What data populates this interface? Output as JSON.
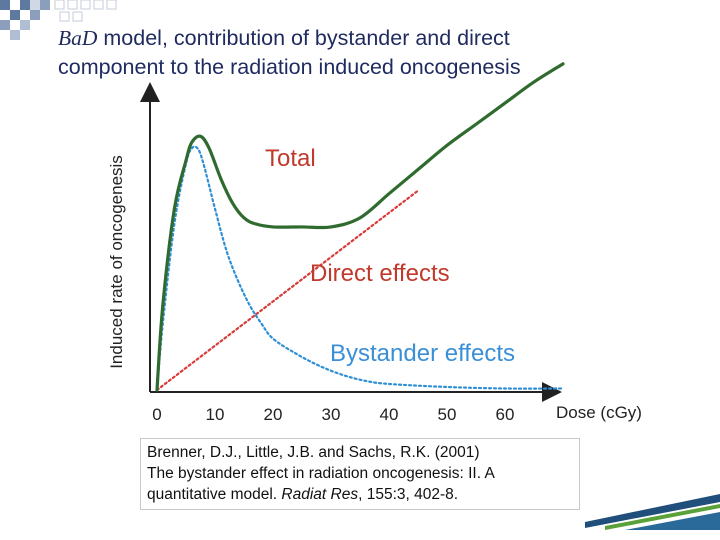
{
  "title": {
    "prefix": "BaD",
    "rest_line1": " model, contribution of bystander and direct",
    "line2": "component to the radiation induced oncogenesis"
  },
  "chart_data": {
    "type": "line",
    "xlabel": "Dose (cGy)",
    "ylabel": "Induced rate of oncogenesis",
    "xticks": [
      "0",
      "10",
      "20",
      "30",
      "40",
      "50",
      "60"
    ],
    "xlim": [
      0,
      70
    ],
    "ylim": [
      0,
      100
    ],
    "grid": false,
    "series": [
      {
        "name": "Total",
        "color": "#2f6b2f",
        "style": "solid",
        "x": [
          0,
          1,
          3,
          5,
          6,
          7.5,
          9,
          11,
          13,
          15,
          17,
          20,
          25,
          30,
          35,
          40,
          45,
          50,
          55,
          60,
          65,
          70
        ],
        "y": [
          0,
          28,
          60,
          76,
          82,
          84,
          80,
          70,
          62,
          57,
          55,
          54,
          54,
          54,
          57,
          65,
          73,
          81,
          88,
          95,
          102,
          108
        ]
      },
      {
        "name": "Direct effects",
        "color": "#d93a3a",
        "style": "dotted",
        "x": [
          0,
          45
        ],
        "y": [
          0,
          66
        ]
      },
      {
        "name": "Bystander effects",
        "color": "#2f8fd6",
        "style": "dotted",
        "x": [
          0,
          1,
          3,
          5,
          6,
          7,
          8,
          10,
          12,
          14,
          16,
          18,
          20,
          24,
          28,
          32,
          36,
          40,
          50,
          60,
          70
        ],
        "y": [
          0,
          22,
          55,
          75,
          80,
          80,
          75,
          60,
          46,
          36,
          28,
          22,
          17,
          12,
          8,
          5,
          3,
          2,
          1,
          0.5,
          0.5
        ]
      }
    ],
    "annotations": [
      {
        "text": "Total",
        "color": "#c0392b"
      },
      {
        "text": "Direct effects",
        "color": "#c0392b"
      },
      {
        "text": "Bystander effects",
        "color": "#3a8fd6"
      }
    ]
  },
  "citation": {
    "line1": "Brenner,  D.J.,  Little,  J.B.  and  Sachs,  R.K.  (2001)",
    "line2": "The bystander effect in radiation oncogenesis: II. A",
    "line3_pre": "quantitative model. ",
    "journal": "Radiat Res",
    "line3_post": ", 155:3, 402-8."
  },
  "colors": {
    "title": "#1f2a5e",
    "corner_squares": "#3e5f8f",
    "footer_stripe": "#1f4f7a",
    "footer_green": "#5aa13a"
  }
}
